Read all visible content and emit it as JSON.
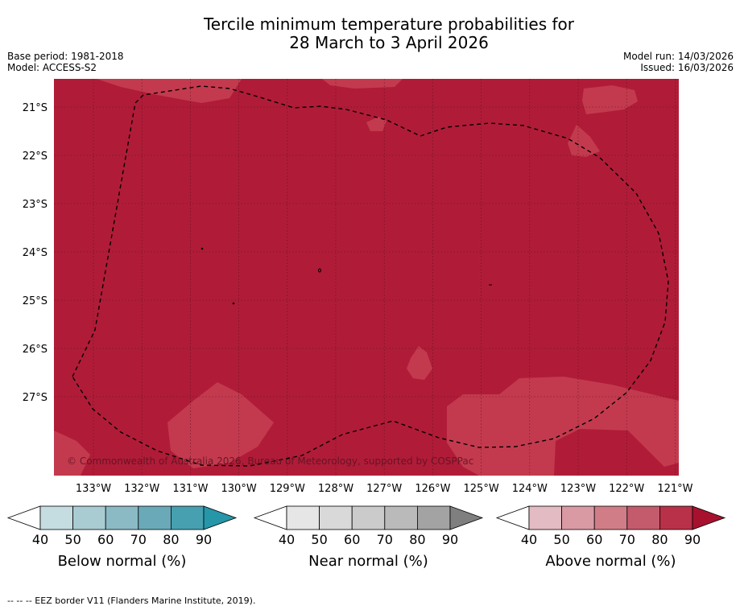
{
  "title": {
    "line1": "Tercile minimum temperature probabilities for",
    "line2": "28 March to 3 April 2026"
  },
  "meta": {
    "base_period": "Base period: 1981-2018",
    "model": "Model: ACCESS-S2",
    "model_run": "Model run: 14/03/2026",
    "issued": "Issued: 16/03/2026"
  },
  "map": {
    "lat_labels": [
      "21°S",
      "22°S",
      "23°S",
      "24°S",
      "25°S",
      "26°S",
      "27°S"
    ],
    "lon_labels": [
      "133°W",
      "132°W",
      "131°W",
      "130°W",
      "129°W",
      "128°W",
      "127°W",
      "126°W",
      "125°W",
      "124°W",
      "123°W",
      "122°W",
      "121°W"
    ],
    "copyright": "© Commonwealth of Australia 2026, Bureau of Meteorology, supported by COSPPac",
    "colors": {
      "dominant_fill": "#b01c38",
      "lighter_fill": "#c33a4e",
      "gridline": "#4a0a18",
      "eez_border": "#000000"
    }
  },
  "legends": [
    {
      "title": "Below normal (%)",
      "ticks": [
        "40",
        "50",
        "60",
        "70",
        "80",
        "90"
      ],
      "colors": [
        "#ffffff",
        "#c5dce1",
        "#a9ccd3",
        "#8bbac5",
        "#6aaab8",
        "#47a0b0",
        "#2696a9"
      ]
    },
    {
      "title": "Near normal (%)",
      "ticks": [
        "40",
        "50",
        "60",
        "70",
        "80",
        "90"
      ],
      "colors": [
        "#ffffff",
        "#e6e6e6",
        "#d9d9d9",
        "#cbcbcb",
        "#bababa",
        "#a3a3a3",
        "#7f7f7f"
      ]
    },
    {
      "title": "Above normal (%)",
      "ticks": [
        "40",
        "50",
        "60",
        "70",
        "80",
        "90"
      ],
      "colors": [
        "#ffffff",
        "#e3bbc2",
        "#da9aa4",
        "#d17d87",
        "#c45b6c",
        "#b83148",
        "#a8112e"
      ]
    }
  ],
  "footnote": "--  --  -- EEZ border V11 (Flanders Marine Institute, 2019)."
}
